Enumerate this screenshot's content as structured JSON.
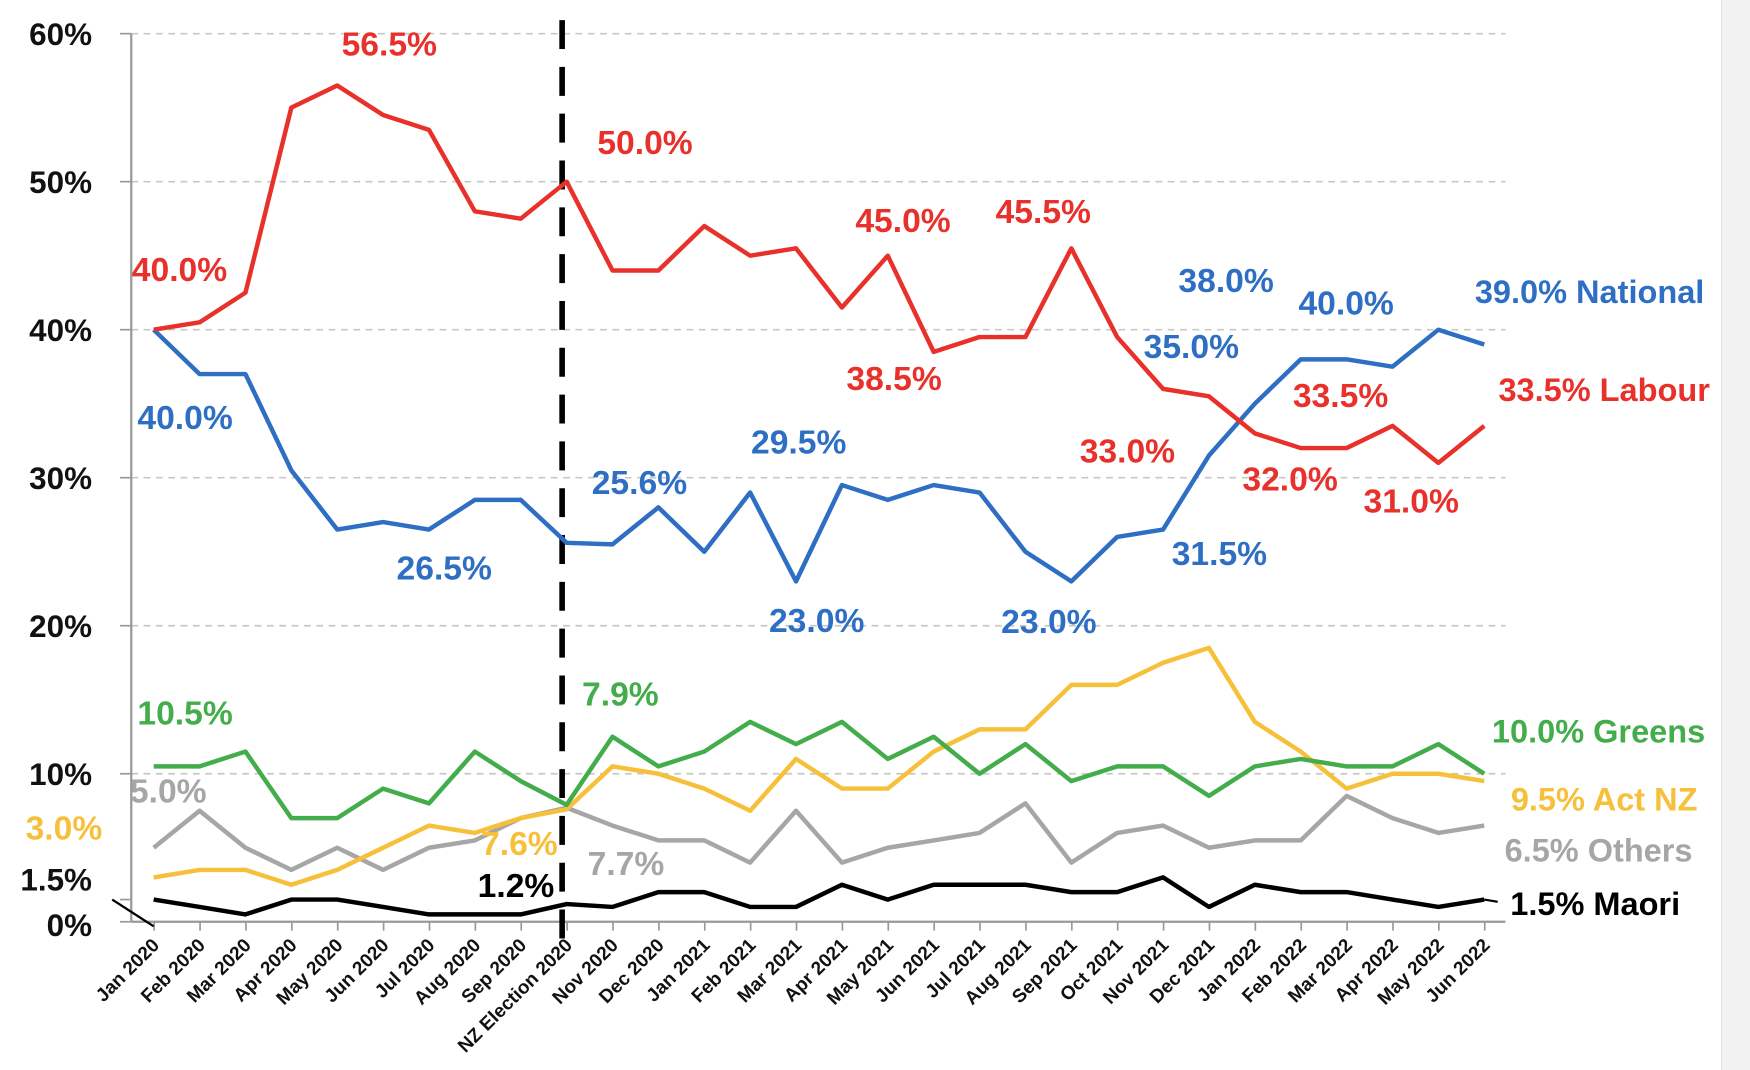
{
  "chart_data": {
    "type": "line",
    "title": "",
    "xlabel": "",
    "ylabel": "",
    "ylim": [
      0,
      60
    ],
    "grid": true,
    "y_ticks": [
      "0%",
      "1.5%",
      "10%",
      "20%",
      "30%",
      "40%",
      "50%",
      "60%"
    ],
    "y_tick_values": [
      0,
      1.5,
      10,
      20,
      30,
      40,
      50,
      60
    ],
    "categories": [
      "Jan 2020",
      "Feb 2020",
      "Mar 2020",
      "Apr 2020",
      "May 2020",
      "Jun 2020",
      "Jul 2020",
      "Aug 2020",
      "Sep 2020",
      "NZ Election 2020",
      "Nov 2020",
      "Dec 2020",
      "Jan 2021",
      "Feb 2021",
      "Mar 2021",
      "Apr 2021",
      "May 2021",
      "Jun 2021",
      "Jul 2021",
      "Aug 2021",
      "Sep 2021",
      "Oct 2021",
      "Nov 2021",
      "Dec 2021",
      "Jan 2022",
      "Feb 2022",
      "Mar 2022",
      "Apr 2022",
      "May 2022",
      "Jun 2022"
    ],
    "marker_line": {
      "category": "NZ Election 2020",
      "style": "dashed"
    },
    "series": [
      {
        "name": "Labour",
        "color": "#e8312b",
        "values": [
          40,
          40.5,
          42.5,
          55,
          56.5,
          54.5,
          53.5,
          48,
          47.5,
          50,
          44,
          44,
          47,
          45,
          45.5,
          41.5,
          45,
          38.5,
          39.5,
          39.5,
          45.5,
          39.5,
          36,
          35.5,
          33,
          32,
          32,
          33.5,
          31,
          33.5
        ]
      },
      {
        "name": "National",
        "color": "#2e6fc4",
        "values": [
          40,
          37,
          37,
          30.5,
          26.5,
          27,
          26.5,
          28.5,
          28.5,
          25.6,
          25.5,
          28,
          25,
          29,
          23,
          29.5,
          28.5,
          29.5,
          29,
          25,
          23,
          26,
          26.5,
          31.5,
          35,
          38,
          38,
          37.5,
          40,
          39
        ]
      },
      {
        "name": "Greens",
        "color": "#43ad4b",
        "values": [
          10.5,
          10.5,
          11.5,
          7,
          7,
          9,
          8,
          11.5,
          9.5,
          7.9,
          12.5,
          10.5,
          11.5,
          13.5,
          12,
          13.5,
          11,
          12.5,
          10,
          12,
          9.5,
          10.5,
          10.5,
          8.5,
          10.5,
          11,
          10.5,
          10.5,
          12,
          10
        ]
      },
      {
        "name": "Act NZ",
        "color": "#f6c03a",
        "values": [
          3,
          3.5,
          3.5,
          2.5,
          3.5,
          5,
          6.5,
          6,
          7,
          7.6,
          10.5,
          10,
          9,
          7.5,
          11,
          9,
          9,
          11.5,
          13,
          13,
          16,
          16,
          17.5,
          18.5,
          13.5,
          11.5,
          9,
          10,
          10,
          9.5
        ]
      },
      {
        "name": "Others",
        "color": "#a6a6a6",
        "values": [
          5,
          7.5,
          5,
          3.5,
          5,
          3.5,
          5,
          5.5,
          7,
          7.7,
          6.5,
          5.5,
          5.5,
          4,
          7.5,
          4,
          5,
          5.5,
          6,
          8,
          4,
          6,
          6.5,
          5,
          5.5,
          5.5,
          8.5,
          7,
          6,
          6.5
        ]
      },
      {
        "name": "Maori",
        "color": "#000000",
        "values": [
          1.5,
          1,
          0.5,
          1.5,
          1.5,
          1,
          0.5,
          0.5,
          0.5,
          1.2,
          1,
          2,
          2,
          1,
          1,
          2.5,
          1.5,
          2.5,
          2.5,
          2.5,
          2,
          2,
          3,
          1,
          2.5,
          2,
          2,
          1.5,
          1,
          1.5
        ]
      }
    ],
    "annotations": [
      {
        "series": "Labour",
        "text": "40.0%"
      },
      {
        "series": "Labour",
        "text": "56.5%"
      },
      {
        "series": "Labour",
        "text": "50.0%"
      },
      {
        "series": "Labour",
        "text": "45.0%"
      },
      {
        "series": "Labour",
        "text": "45.5%"
      },
      {
        "series": "Labour",
        "text": "38.5%"
      },
      {
        "series": "Labour",
        "text": "33.0%"
      },
      {
        "series": "Labour",
        "text": "33.5%"
      },
      {
        "series": "Labour",
        "text": "32.0%"
      },
      {
        "series": "Labour",
        "text": "31.0%"
      },
      {
        "series": "Labour",
        "text": "33.5% Labour"
      },
      {
        "series": "National",
        "text": "40.0%"
      },
      {
        "series": "National",
        "text": "26.5%"
      },
      {
        "series": "National",
        "text": "25.6%"
      },
      {
        "series": "National",
        "text": "29.5%"
      },
      {
        "series": "National",
        "text": "23.0%"
      },
      {
        "series": "National",
        "text": "23.0%"
      },
      {
        "series": "National",
        "text": "38.0%"
      },
      {
        "series": "National",
        "text": "35.0%"
      },
      {
        "series": "National",
        "text": "40.0%"
      },
      {
        "series": "National",
        "text": "31.5%"
      },
      {
        "series": "National",
        "text": "39.0% National"
      },
      {
        "series": "Greens",
        "text": "10.5%"
      },
      {
        "series": "Greens",
        "text": "7.9%"
      },
      {
        "series": "Greens",
        "text": "10.0% Greens"
      },
      {
        "series": "Act NZ",
        "text": "3.0%"
      },
      {
        "series": "Act NZ",
        "text": "7.6%"
      },
      {
        "series": "Act NZ",
        "text": "9.5% Act NZ"
      },
      {
        "series": "Others",
        "text": "5.0%"
      },
      {
        "series": "Others",
        "text": "7.7%"
      },
      {
        "series": "Others",
        "text": "6.5% Others"
      },
      {
        "series": "Maori",
        "text": "1.2%"
      },
      {
        "series": "Maori",
        "text": "1.5% Maori"
      }
    ]
  }
}
